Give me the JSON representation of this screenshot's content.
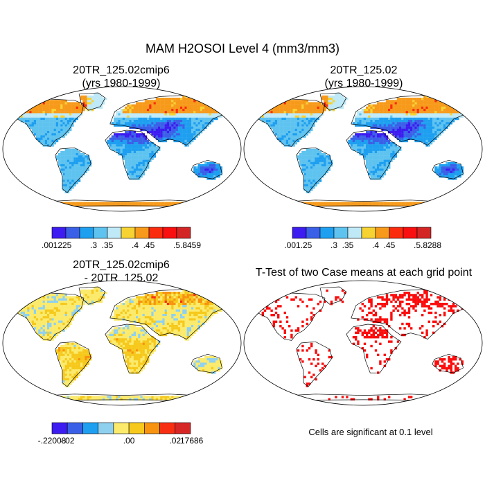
{
  "figure": {
    "title": "MAM H2OSOI Level 4 (mm3/mm3)"
  },
  "palettes": {
    "mean": [
      "#3c1cf0",
      "#3b60e8",
      "#1e9ff0",
      "#5fc3f0",
      "#bfe9f7",
      "#f6d233",
      "#f79a1b",
      "#fb2c0d",
      "#f90f0f",
      "#d42525"
    ],
    "diff": [
      "#3c1cf0",
      "#3b60e8",
      "#1e9ff0",
      "#8fd0ef",
      "#fbea6c",
      "#f6c91c",
      "#f7930f",
      "#f92f14",
      "#d72626"
    ]
  },
  "chart_data": [
    {
      "type": "heatmap",
      "panel": "top-left",
      "title_line1": "20TR_125.02cmip6",
      "title_line2": "(yrs 1980-1999)",
      "colorbar_ticks": [
        ".0012",
        ".25",
        ".3",
        ".35",
        ".4",
        ".45",
        ".5",
        ".8459"
      ],
      "range": [
        0.0012,
        0.8459
      ]
    },
    {
      "type": "heatmap",
      "panel": "top-right",
      "title_line1": "20TR_125.02",
      "title_line2": "(yrs 1980-1999)",
      "colorbar_ticks": [
        ".001",
        ".25",
        ".3",
        ".35",
        ".4",
        ".45",
        ".5",
        ".8288"
      ],
      "range": [
        0.001,
        0.8288
      ]
    },
    {
      "type": "heatmap",
      "panel": "bottom-left",
      "title_line1": "20TR_125.02cmip6",
      "title_line2": "- 20TR_125.02",
      "colorbar_ticks": [
        "-.22008",
        "-.02",
        ".00",
        ".02",
        ".17686"
      ],
      "range": [
        -0.22008,
        0.17686
      ]
    },
    {
      "type": "heatmap",
      "panel": "bottom-right",
      "title_line1": "T-Test of two Case means at each grid point",
      "note": "Cells are significant at 0.1 level"
    }
  ]
}
